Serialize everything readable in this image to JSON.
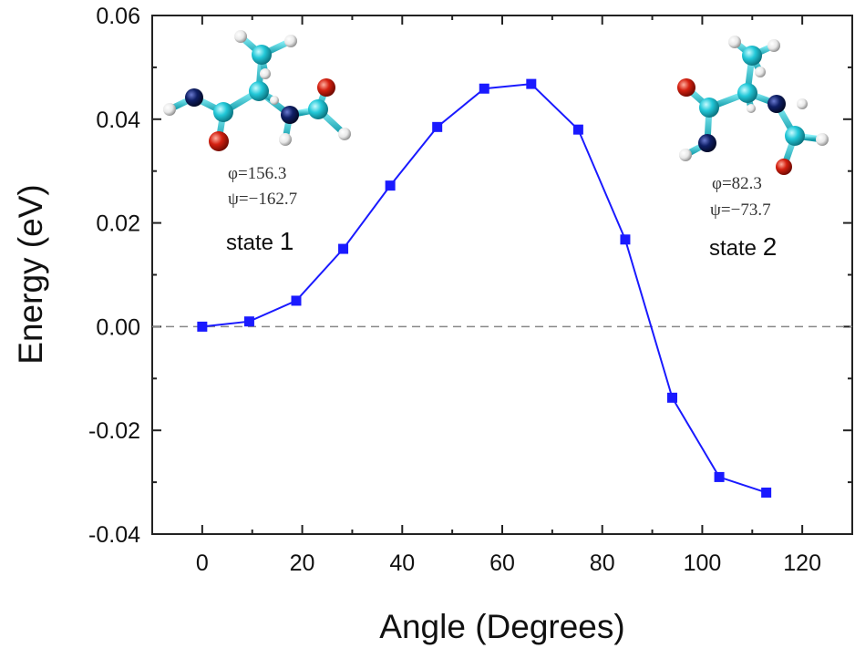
{
  "chart_data": {
    "type": "line",
    "title": "",
    "xlabel": "Angle (Degrees)",
    "ylabel": "Energy (eV)",
    "xlim": [
      -10,
      130
    ],
    "ylim": [
      -0.04,
      0.06
    ],
    "xticks": [
      0,
      20,
      40,
      60,
      80,
      100,
      120
    ],
    "yticks": [
      -0.04,
      -0.02,
      0.0,
      0.02,
      0.04,
      0.06
    ],
    "xtick_labels": [
      "0",
      "20",
      "40",
      "60",
      "80",
      "100",
      "120"
    ],
    "ytick_labels": [
      "-0.04",
      "-0.02",
      "0.00",
      "0.02",
      "0.04",
      "0.06"
    ],
    "grid": false,
    "reference_line": {
      "y": 0.0,
      "style": "dashed",
      "color": "#888888"
    },
    "series": [
      {
        "color": "#1a1aff",
        "marker": "square",
        "x": [
          0,
          9.4,
          18.8,
          28.2,
          37.6,
          47.0,
          56.4,
          65.8,
          75.2,
          84.6,
          94.0,
          103.4,
          112.8
        ],
        "y": [
          0.0,
          0.001,
          0.005,
          0.015,
          0.0272,
          0.0385,
          0.0459,
          0.0468,
          0.038,
          0.0168,
          -0.0137,
          -0.029,
          -0.032
        ]
      }
    ],
    "annotations": [
      {
        "id": "state1",
        "phi": "φ=156.3",
        "psi": "ψ=−162.7",
        "label_word": "state",
        "label_num": "1"
      },
      {
        "id": "state2",
        "phi": "φ=82.3",
        "psi": "ψ=−73.7",
        "label_word": "state",
        "label_num": "2"
      }
    ]
  },
  "colors": {
    "line": "#1a1aff",
    "marker": "#1a1aff",
    "carbon": "#22c8d8",
    "nitrogen": "#0a1a5c",
    "oxygen": "#d42010",
    "hydrogen": "#f0f0f0"
  }
}
